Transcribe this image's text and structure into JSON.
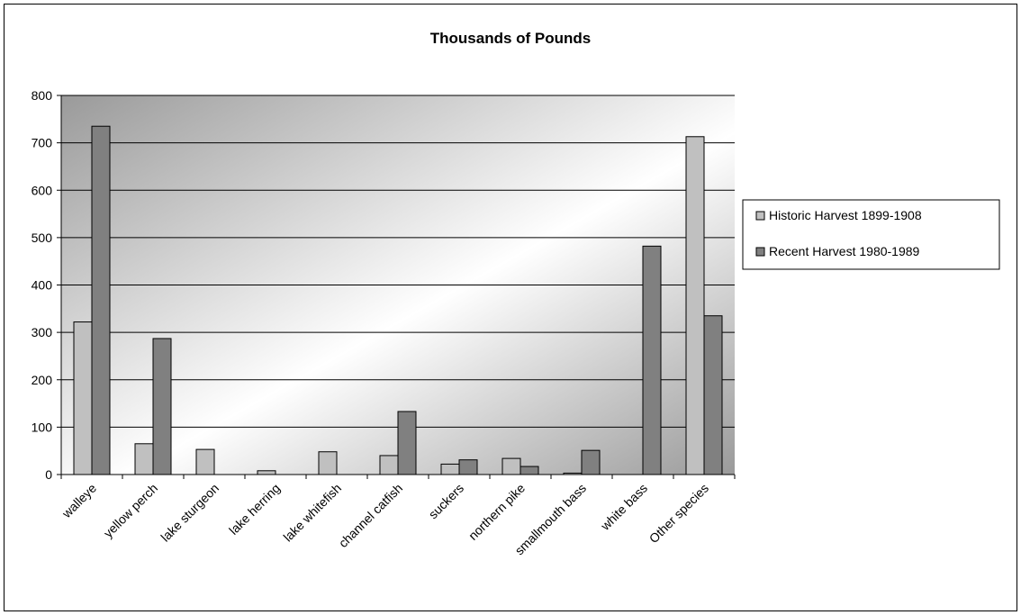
{
  "chart_data": {
    "type": "bar",
    "title": "Thousands of Pounds",
    "xlabel": "",
    "ylabel": "",
    "categories": [
      "walleye",
      "yellow perch",
      "lake sturgeon",
      "lake herring",
      "lake whitefish",
      "channel catfish",
      "suckers",
      "northern pike",
      "smallmouth bass",
      "white bass",
      "Other species"
    ],
    "series": [
      {
        "name": "Historic Harvest 1899-1908",
        "color": "#c0c0c0",
        "values": [
          322,
          65,
          53,
          8,
          48,
          40,
          22,
          34,
          3,
          0,
          713
        ]
      },
      {
        "name": "Recent Harvest 1980-1989",
        "color": "#808080",
        "values": [
          735,
          287,
          0,
          0,
          0,
          133,
          31,
          17,
          51,
          482,
          335
        ]
      }
    ],
    "ylim": [
      0,
      800
    ],
    "yticks": [
      0,
      100,
      200,
      300,
      400,
      500,
      600,
      700,
      800
    ],
    "grid": true,
    "legend_position": "right",
    "plot_background": "gray-to-white gradient"
  }
}
